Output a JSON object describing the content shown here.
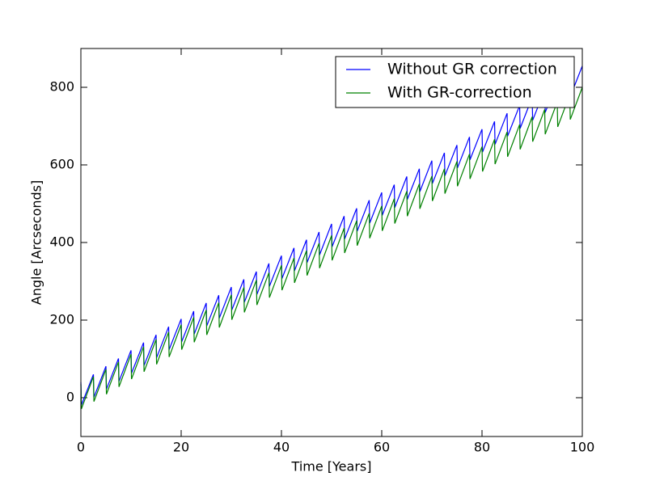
{
  "chart_data": {
    "type": "line",
    "x_label": "Time [Years]",
    "y_label": "Angle [Arcseconds]",
    "x": [
      0,
      0.1,
      2.5,
      2.6,
      5,
      5.1,
      7.5,
      7.6,
      10,
      10.1,
      12.5,
      12.6,
      15,
      15.1,
      17.5,
      17.6,
      20,
      20.1,
      22.5,
      22.6,
      25,
      25.1,
      27.5,
      27.6,
      30,
      30.1,
      32.5,
      32.6,
      35,
      35.1,
      37.5,
      37.6,
      40,
      40.1,
      42.5,
      42.6,
      45,
      45.1,
      47.5,
      47.6,
      50,
      50.1,
      52.5,
      52.6,
      55,
      55.1,
      57.5,
      57.6,
      60,
      60.1,
      62.5,
      62.6,
      65,
      65.1,
      67.5,
      67.6,
      70,
      70.1,
      72.5,
      72.6,
      75,
      75.1,
      77.5,
      77.6,
      80,
      80.1,
      82.5,
      82.6,
      85,
      85.1,
      87.5,
      87.6,
      90,
      90.1,
      92.5,
      92.6,
      95,
      95.1,
      97.5,
      97.6,
      100
    ],
    "series": [
      {
        "name": "Without GR correction",
        "color": "#0000ff",
        "values": [
          40,
          -19,
          60,
          1,
          81,
          22,
          101,
          42,
          122,
          63,
          142,
          83,
          162,
          103,
          183,
          124,
          203,
          144,
          223,
          164,
          244,
          185,
          264,
          205,
          285,
          226,
          305,
          246,
          325,
          266,
          346,
          287,
          366,
          307,
          386,
          327,
          407,
          348,
          427,
          368,
          448,
          389,
          468,
          409,
          488,
          429,
          509,
          450,
          529,
          470,
          549,
          490,
          570,
          511,
          590,
          531,
          611,
          552,
          631,
          572,
          651,
          592,
          672,
          613,
          692,
          633,
          712,
          653,
          733,
          674,
          753,
          694,
          774,
          715,
          794,
          735,
          814,
          755,
          835,
          776,
          855
        ]
      },
      {
        "name": "With GR-correction",
        "color": "#008000",
        "values": [
          35,
          -29,
          54,
          -10,
          73,
          9,
          92,
          28,
          112,
          48,
          131,
          67,
          150,
          86,
          169,
          105,
          188,
          124,
          207,
          143,
          226,
          162,
          245,
          181,
          265,
          201,
          284,
          220,
          303,
          239,
          322,
          258,
          341,
          277,
          360,
          296,
          379,
          315,
          398,
          334,
          418,
          354,
          437,
          373,
          456,
          392,
          475,
          411,
          494,
          430,
          513,
          449,
          532,
          468,
          551,
          487,
          571,
          507,
          590,
          526,
          609,
          545,
          628,
          564,
          647,
          583,
          666,
          602,
          685,
          621,
          704,
          640,
          724,
          660,
          743,
          679,
          762,
          698,
          781,
          717,
          800
        ]
      }
    ],
    "xlim": [
      0,
      100
    ],
    "xticks": [
      0,
      20,
      40,
      60,
      80,
      100
    ],
    "ylim": [
      -100,
      900
    ],
    "yticks": [
      0,
      200,
      400,
      600,
      800
    ],
    "legend": "upper right"
  }
}
